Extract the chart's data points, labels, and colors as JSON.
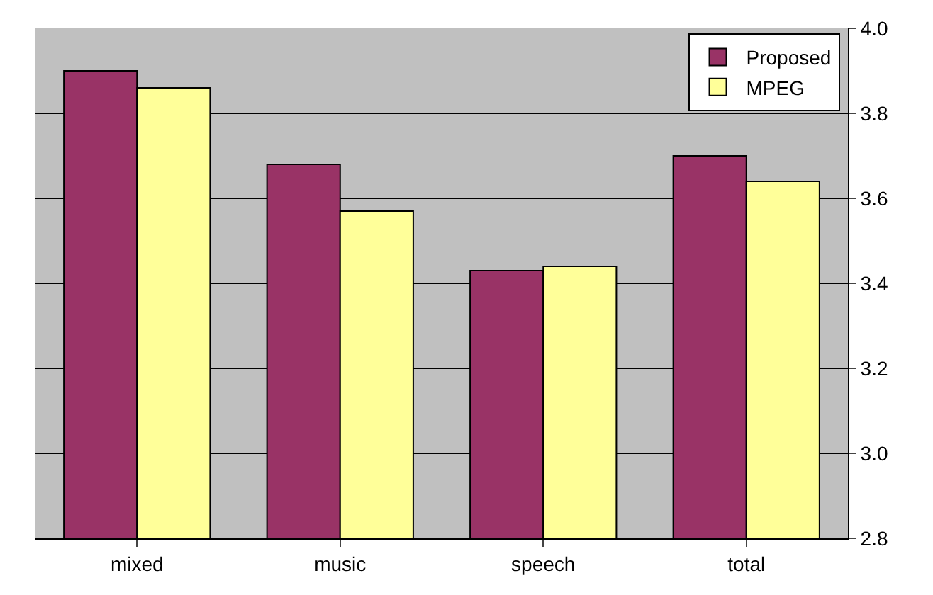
{
  "chart_data": {
    "type": "bar",
    "categories": [
      "mixed",
      "music",
      "speech",
      "total"
    ],
    "series": [
      {
        "name": "Proposed",
        "color": "#993366",
        "values": [
          3.9,
          3.68,
          3.43,
          3.7
        ]
      },
      {
        "name": "MPEG",
        "color": "#ffff99",
        "values": [
          3.86,
          3.57,
          3.44,
          3.64
        ]
      }
    ],
    "ylim": [
      2.8,
      4.0
    ],
    "yticks": [
      {
        "value": 2.8,
        "label": "2.8"
      },
      {
        "value": 3.0,
        "label": "3.0"
      },
      {
        "value": 3.2,
        "label": "3.2"
      },
      {
        "value": 3.4,
        "label": "3.4"
      },
      {
        "value": 3.6,
        "label": "3.6"
      },
      {
        "value": 3.8,
        "label": "3.8"
      },
      {
        "value": 4.0,
        "label": "4.0"
      }
    ],
    "grid": "y",
    "legend": "top right"
  }
}
